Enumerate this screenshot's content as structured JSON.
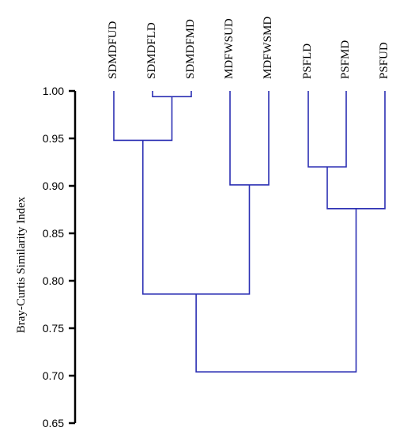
{
  "chart_data": {
    "type": "dendrogram",
    "ylabel": "Bray-Curtis Similarity Index",
    "ylim": [
      0.65,
      1.0
    ],
    "yticks": [
      "1.00",
      "0.95",
      "0.90",
      "0.85",
      "0.80",
      "0.75",
      "0.70",
      "0.65"
    ],
    "leaves": [
      "SDMDFUD",
      "SDMDFLD",
      "SDMDFMD",
      "MDFWSUD",
      "MDFWSMD",
      "PSFLD",
      "PSFMD",
      "PSFUD"
    ],
    "merges": [
      {
        "left": "SDMDFLD",
        "right": "SDMDFMD",
        "similarity": 0.994
      },
      {
        "left": "SDMDFUD",
        "right": "SDMDFLD+SDMDFMD",
        "similarity": 0.948
      },
      {
        "left": "MDFWSUD",
        "right": "MDFWSMD",
        "similarity": 0.901
      },
      {
        "left": "PSFLD",
        "right": "PSFMD",
        "similarity": 0.92
      },
      {
        "left": "PSFLD+PSFMD",
        "right": "PSFUD",
        "similarity": 0.876
      },
      {
        "left": "SDMDF",
        "right": "MDFWS",
        "similarity": 0.786
      },
      {
        "left": "SDMDF+MDFWS",
        "right": "PSF",
        "similarity": 0.704
      }
    ],
    "line_color": "#2b2fb3"
  }
}
